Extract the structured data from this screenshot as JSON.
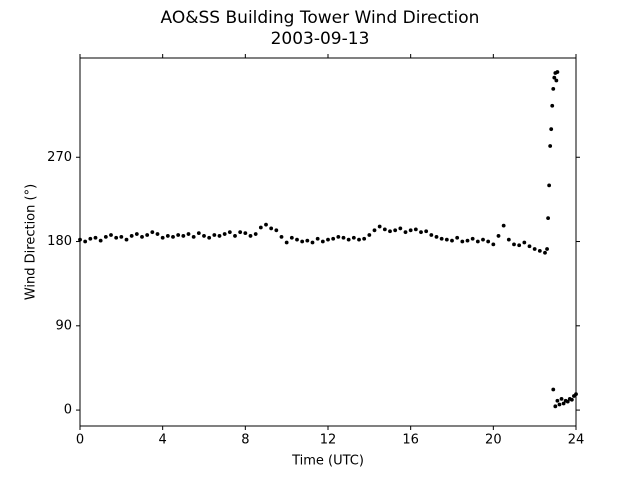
{
  "chart_data": {
    "type": "scatter",
    "title": "AO&SS Building Tower Wind Direction",
    "subtitle": "2003-09-13",
    "x_label": "Time (UTC)",
    "y_label": "Wind Direction (°)",
    "xlim": [
      0,
      24
    ],
    "xticks": [
      0,
      4,
      8,
      12,
      16,
      20,
      24
    ],
    "ylim": [
      -17,
      376
    ],
    "yticks": [
      0,
      90,
      180,
      270
    ],
    "grid": false,
    "series": [
      {
        "color": "#000000",
        "x": [
          0,
          0.25,
          0.5,
          0.75,
          1,
          1.25,
          1.5,
          1.75,
          2,
          2.25,
          2.5,
          2.75,
          3,
          3.25,
          3.5,
          3.75,
          4,
          4.25,
          4.5,
          4.75,
          5,
          5.25,
          5.5,
          5.75,
          6,
          6.25,
          6.5,
          6.75,
          7,
          7.25,
          7.5,
          7.75,
          8,
          8.25,
          8.5,
          8.75,
          9,
          9.25,
          9.5,
          9.75,
          10,
          10.25,
          10.5,
          10.75,
          11,
          11.25,
          11.5,
          11.75,
          12,
          12.25,
          12.5,
          12.75,
          13,
          13.25,
          13.5,
          13.75,
          14,
          14.25,
          14.5,
          14.75,
          15,
          15.25,
          15.5,
          15.75,
          16,
          16.25,
          16.5,
          16.75,
          17,
          17.25,
          17.5,
          17.75,
          18,
          18.25,
          18.5,
          18.75,
          19,
          19.25,
          19.5,
          19.75,
          20,
          20.25,
          20.5,
          20.75,
          21,
          21.25,
          21.5,
          21.75,
          22,
          22.25,
          22.5,
          22.6,
          22.65,
          22.7,
          22.75,
          22.8,
          22.85,
          22.9,
          22.95,
          23.0,
          23.05,
          23.1,
          22.9,
          23.0,
          23.1,
          23.2,
          23.3,
          23.4,
          23.5,
          23.6,
          23.7,
          23.8,
          23.9,
          24.0
        ],
        "values": [
          182,
          180,
          183,
          184,
          181,
          185,
          187,
          184,
          185,
          182,
          186,
          188,
          185,
          187,
          190,
          188,
          184,
          186,
          185,
          187,
          186,
          188,
          185,
          189,
          186,
          184,
          187,
          186,
          188,
          190,
          186,
          190,
          189,
          186,
          188,
          195,
          198,
          194,
          192,
          185,
          179,
          184,
          182,
          180,
          181,
          179,
          183,
          180,
          182,
          183,
          185,
          184,
          182,
          184,
          182,
          183,
          187,
          192,
          196,
          193,
          191,
          192,
          194,
          190,
          192,
          193,
          190,
          191,
          187,
          185,
          183,
          182,
          181,
          184,
          180,
          181,
          183,
          180,
          182,
          180,
          177,
          186,
          197,
          182,
          177,
          176,
          179,
          175,
          172,
          170,
          168,
          172,
          205,
          240,
          282,
          300,
          325,
          343,
          355,
          360,
          352,
          361,
          22,
          4,
          10,
          6,
          12,
          7,
          10,
          9,
          12,
          11,
          15,
          17
        ]
      }
    ]
  }
}
